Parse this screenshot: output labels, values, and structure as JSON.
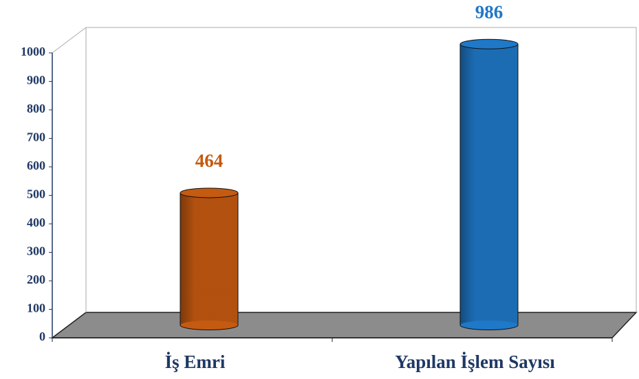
{
  "chart_data": {
    "type": "bar3d",
    "categories": [
      "İş Emri",
      "Yapılan İşlem Sayısı"
    ],
    "values": [
      464,
      986
    ],
    "colors": [
      "#c55a11",
      "#1f78c8"
    ],
    "ylim": [
      0,
      1000
    ],
    "yticks": [
      0,
      100,
      200,
      300,
      400,
      500,
      600,
      700,
      800,
      900,
      1000
    ]
  }
}
